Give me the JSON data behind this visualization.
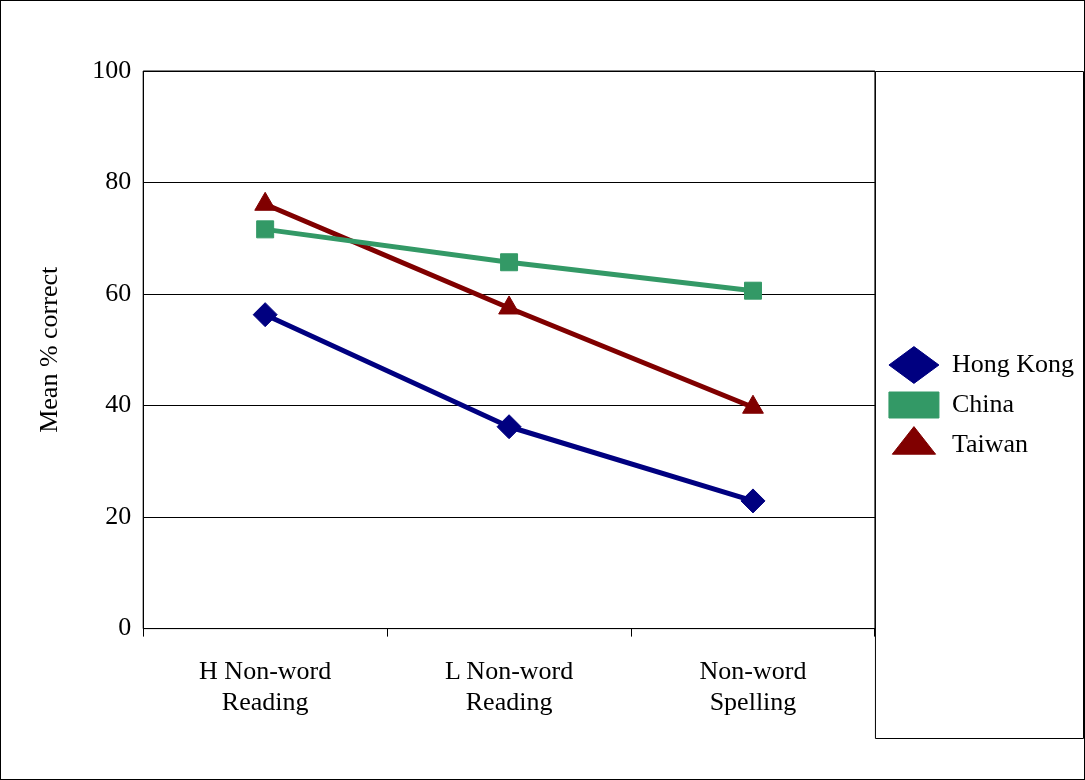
{
  "chart_data": {
    "type": "line",
    "categories": [
      "H Non-word Reading",
      "L Non-word Reading",
      "Non-word Spelling"
    ],
    "series": [
      {
        "name": "Hong Kong",
        "color": "#000080",
        "marker": "diamond",
        "values": [
          56.3,
          36.2,
          22.9
        ]
      },
      {
        "name": "China",
        "color": "#339966",
        "marker": "square",
        "values": [
          71.6,
          65.7,
          60.6
        ]
      },
      {
        "name": "Taiwan",
        "color": "#800000",
        "marker": "triangle",
        "values": [
          76.1,
          57.5,
          39.7
        ]
      }
    ],
    "ylabel": "Mean % correct",
    "ylim": [
      0,
      100
    ],
    "yticks": [
      0,
      20,
      40,
      60,
      80,
      100
    ],
    "grid": "y",
    "legend": "right",
    "line_style": "solid"
  }
}
